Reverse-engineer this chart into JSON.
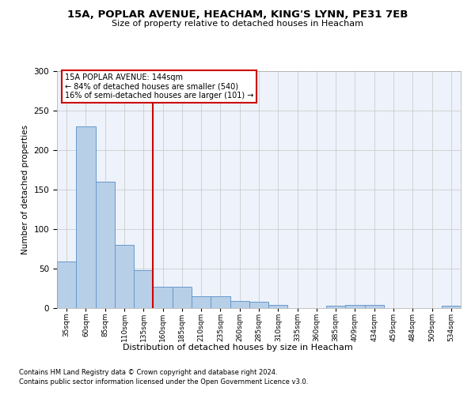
{
  "title_line1": "15A, POPLAR AVENUE, HEACHAM, KING'S LYNN, PE31 7EB",
  "title_line2": "Size of property relative to detached houses in Heacham",
  "xlabel": "Distribution of detached houses by size in Heacham",
  "ylabel": "Number of detached properties",
  "categories": [
    "35sqm",
    "60sqm",
    "85sqm",
    "110sqm",
    "135sqm",
    "160sqm",
    "185sqm",
    "210sqm",
    "235sqm",
    "260sqm",
    "285sqm",
    "310sqm",
    "335sqm",
    "360sqm",
    "385sqm",
    "409sqm",
    "434sqm",
    "459sqm",
    "484sqm",
    "509sqm",
    "534sqm"
  ],
  "values": [
    59,
    230,
    160,
    80,
    48,
    27,
    27,
    15,
    15,
    9,
    8,
    4,
    0,
    0,
    3,
    4,
    4,
    0,
    0,
    0,
    3
  ],
  "bar_color": "#b8cfe8",
  "bar_edge_color": "#6699cc",
  "vline_x_idx": 4.5,
  "vline_color": "#cc0000",
  "annotation_text": "15A POPLAR AVENUE: 144sqm\n← 84% of detached houses are smaller (540)\n16% of semi-detached houses are larger (101) →",
  "annotation_box_color": "white",
  "annotation_box_edge": "#cc0000",
  "ylim": [
    0,
    300
  ],
  "yticks": [
    0,
    50,
    100,
    150,
    200,
    250,
    300
  ],
  "bg_color": "#eef2fa",
  "grid_color": "#cccccc",
  "footnote1": "Contains HM Land Registry data © Crown copyright and database right 2024.",
  "footnote2": "Contains public sector information licensed under the Open Government Licence v3.0."
}
